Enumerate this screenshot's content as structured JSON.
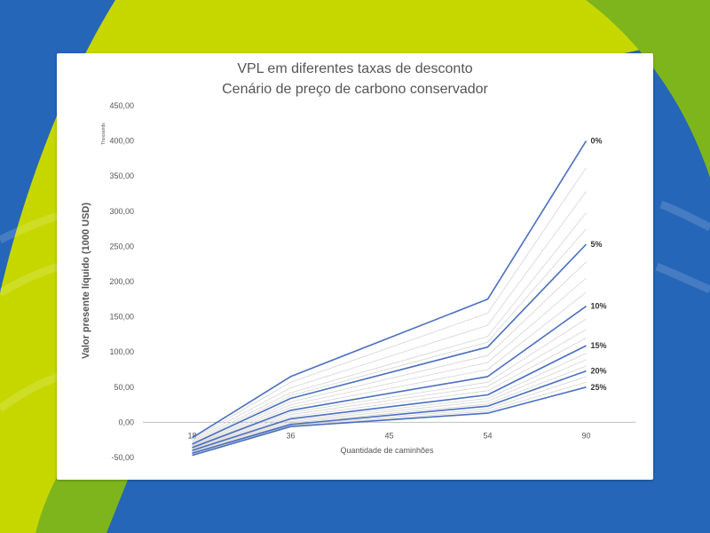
{
  "background": {
    "colors": {
      "blue": "#2566b8",
      "lime": "#c6d700",
      "green": "#7fb51c"
    }
  },
  "chart_data": {
    "type": "line",
    "title": "VPL em diferentes taxas de desconto",
    "subtitle": "Cenário de preço de carbono conservador",
    "xlabel": "Quantidade de caminhões",
    "ylabel": "Valor presente líquido (1000 USD)",
    "y_units_label": "Thousands",
    "categories": [
      "18",
      "36",
      "45",
      "54",
      "90"
    ],
    "ylim": [
      -50,
      450
    ],
    "yticks": [
      "450,00",
      "400,00",
      "350,00",
      "300,00",
      "250,00",
      "200,00",
      "150,00",
      "100,00",
      "50,00",
      "0,00",
      "-50,00"
    ],
    "grid": false,
    "legend": "none",
    "colors": {
      "highlight": "#4a6fbe",
      "minor": "#d4d4d4",
      "axis": "#bfbfbf",
      "title": "#555555"
    },
    "series": [
      {
        "name": "0%",
        "highlight": true,
        "values": [
          -22,
          65,
          null,
          175,
          400
        ]
      },
      {
        "name": "",
        "highlight": false,
        "values": [
          -24,
          57,
          null,
          155,
          362
        ]
      },
      {
        "name": "",
        "highlight": false,
        "values": [
          -26,
          49,
          null,
          138,
          328
        ]
      },
      {
        "name": "",
        "highlight": false,
        "values": [
          -28,
          42,
          null,
          122,
          298
        ]
      },
      {
        "name": "",
        "highlight": false,
        "values": [
          -30,
          38,
          null,
          114,
          275
        ]
      },
      {
        "name": "5%",
        "highlight": true,
        "values": [
          -31,
          34,
          null,
          107,
          253
        ]
      },
      {
        "name": "",
        "highlight": false,
        "values": [
          -33,
          29,
          null,
          95,
          228
        ]
      },
      {
        "name": "",
        "highlight": false,
        "values": [
          -34,
          25,
          null,
          85,
          205
        ]
      },
      {
        "name": "",
        "highlight": false,
        "values": [
          -35,
          21,
          null,
          75,
          185
        ]
      },
      {
        "name": "10%",
        "highlight": true,
        "values": [
          -36,
          17,
          null,
          65,
          165
        ]
      },
      {
        "name": "",
        "highlight": false,
        "values": [
          -37,
          14,
          null,
          57,
          147
        ]
      },
      {
        "name": "",
        "highlight": false,
        "values": [
          -38,
          11,
          null,
          51,
          132
        ]
      },
      {
        "name": "",
        "highlight": false,
        "values": [
          -39,
          8,
          null,
          45,
          120
        ]
      },
      {
        "name": "15%",
        "highlight": true,
        "values": [
          -40,
          5,
          null,
          39,
          109
        ]
      },
      {
        "name": "",
        "highlight": false,
        "values": [
          -41,
          3,
          null,
          34,
          98
        ]
      },
      {
        "name": "",
        "highlight": false,
        "values": [
          -42,
          1,
          null,
          30,
          89
        ]
      },
      {
        "name": "",
        "highlight": false,
        "values": [
          -43,
          -1,
          null,
          26,
          80
        ]
      },
      {
        "name": "20%",
        "highlight": true,
        "values": [
          -44,
          -3,
          null,
          23,
          73
        ]
      },
      {
        "name": "",
        "highlight": false,
        "values": [
          -45,
          -4,
          null,
          19,
          65
        ]
      },
      {
        "name": "",
        "highlight": false,
        "values": [
          -46,
          -5,
          null,
          16,
          57
        ]
      },
      {
        "name": "25%",
        "highlight": true,
        "values": [
          -47,
          -6,
          null,
          13,
          50
        ]
      }
    ]
  }
}
